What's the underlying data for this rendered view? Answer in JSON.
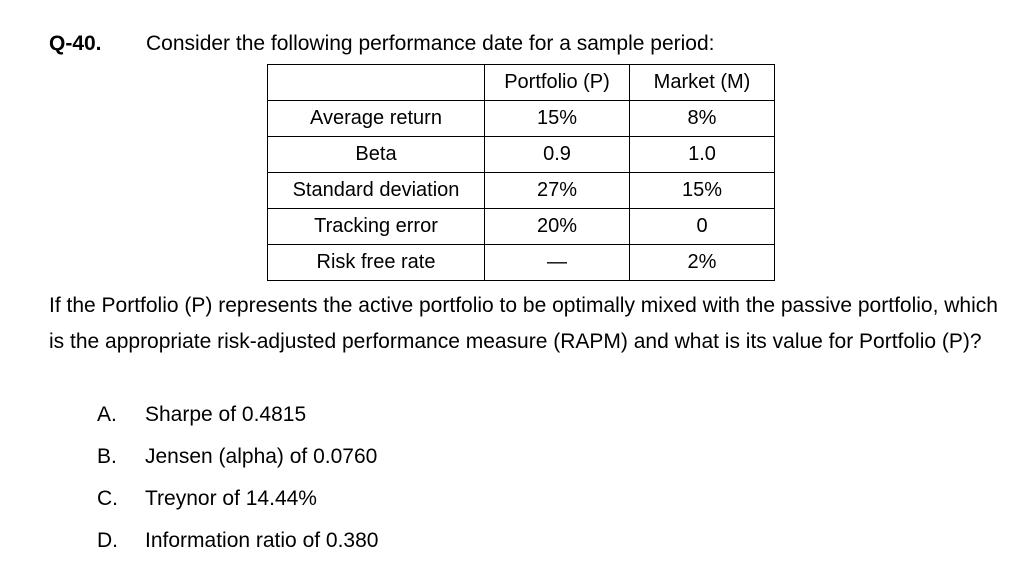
{
  "question": {
    "number": "Q-40.",
    "stem": "Consider the following performance date for a sample period:"
  },
  "table": {
    "header": [
      "",
      "Portfolio (P)",
      "Market (M)"
    ],
    "rows": [
      [
        "Average return",
        "15%",
        "8%"
      ],
      [
        "Beta",
        "0.9",
        "1.0"
      ],
      [
        "Standard deviation",
        "27%",
        "15%"
      ],
      [
        "Tracking error",
        "20%",
        "0"
      ],
      [
        "Risk free rate",
        "—",
        "2%"
      ]
    ]
  },
  "body": "If the Portfolio (P) represents the active portfolio to be optimally mixed with the passive portfolio, which is the appropriate risk-adjusted performance measure (RAPM) and what is its value for Portfolio (P)?",
  "options": [
    {
      "letter": "A.",
      "text": "Sharpe of 0.4815"
    },
    {
      "letter": "B.",
      "text": "Jensen (alpha) of 0.0760"
    },
    {
      "letter": "C.",
      "text": "Treynor of 14.44%"
    },
    {
      "letter": "D.",
      "text": "Information ratio of 0.380"
    }
  ]
}
